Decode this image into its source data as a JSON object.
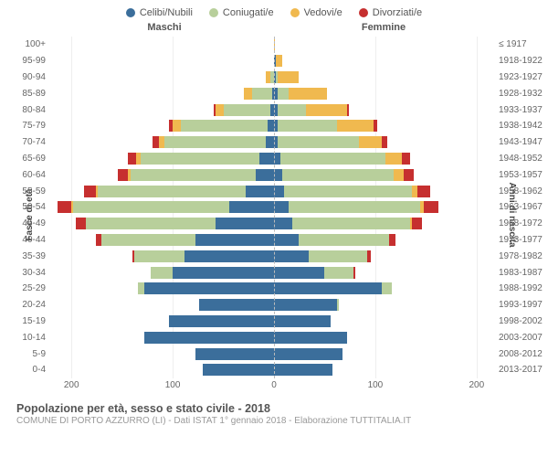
{
  "legend": [
    {
      "label": "Celibi/Nubili",
      "color": "#3b6e9b"
    },
    {
      "label": "Coniugati/e",
      "color": "#b8cf9b"
    },
    {
      "label": "Vedovi/e",
      "color": "#f0b94f"
    },
    {
      "label": "Divorziati/e",
      "color": "#c62f2f"
    }
  ],
  "headers": {
    "left": "Maschi",
    "right": "Femmine"
  },
  "axis_titles": {
    "left": "Fasce di età",
    "right": "Anni di nascita"
  },
  "title": "Popolazione per età, sesso e stato civile - 2018",
  "subtitle": "COMUNE DI PORTO AZZURRO (LI) - Dati ISTAT 1° gennaio 2018 - Elaborazione TUTTITALIA.IT",
  "x_max": 220,
  "x_ticks": [
    0,
    100,
    200
  ],
  "rows": [
    {
      "age": "100+",
      "year": "≤ 1917",
      "m": {
        "cn": 0,
        "co": 0,
        "ve": 0,
        "di": 0
      },
      "f": {
        "cn": 0,
        "co": 0,
        "ve": 1,
        "di": 0
      }
    },
    {
      "age": "95-99",
      "year": "1918-1922",
      "m": {
        "cn": 0,
        "co": 0,
        "ve": 0,
        "di": 0
      },
      "f": {
        "cn": 2,
        "co": 0,
        "ve": 6,
        "di": 0
      }
    },
    {
      "age": "90-94",
      "year": "1923-1927",
      "m": {
        "cn": 0,
        "co": 4,
        "ve": 4,
        "di": 0
      },
      "f": {
        "cn": 2,
        "co": 2,
        "ve": 20,
        "di": 0
      }
    },
    {
      "age": "85-89",
      "year": "1928-1932",
      "m": {
        "cn": 2,
        "co": 20,
        "ve": 8,
        "di": 0
      },
      "f": {
        "cn": 4,
        "co": 10,
        "ve": 38,
        "di": 0
      }
    },
    {
      "age": "80-84",
      "year": "1933-1937",
      "m": {
        "cn": 4,
        "co": 46,
        "ve": 8,
        "di": 2
      },
      "f": {
        "cn": 4,
        "co": 28,
        "ve": 40,
        "di": 2
      }
    },
    {
      "age": "75-79",
      "year": "1938-1942",
      "m": {
        "cn": 6,
        "co": 86,
        "ve": 8,
        "di": 4
      },
      "f": {
        "cn": 4,
        "co": 58,
        "ve": 36,
        "di": 4
      }
    },
    {
      "age": "70-74",
      "year": "1943-1947",
      "m": {
        "cn": 8,
        "co": 100,
        "ve": 6,
        "di": 6
      },
      "f": {
        "cn": 4,
        "co": 80,
        "ve": 22,
        "di": 6
      }
    },
    {
      "age": "65-69",
      "year": "1948-1952",
      "m": {
        "cn": 14,
        "co": 118,
        "ve": 4,
        "di": 8
      },
      "f": {
        "cn": 6,
        "co": 104,
        "ve": 16,
        "di": 8
      }
    },
    {
      "age": "60-64",
      "year": "1953-1957",
      "m": {
        "cn": 18,
        "co": 124,
        "ve": 2,
        "di": 10
      },
      "f": {
        "cn": 8,
        "co": 110,
        "ve": 10,
        "di": 10
      }
    },
    {
      "age": "55-59",
      "year": "1958-1962",
      "m": {
        "cn": 28,
        "co": 146,
        "ve": 2,
        "di": 12
      },
      "f": {
        "cn": 10,
        "co": 126,
        "ve": 6,
        "di": 12
      }
    },
    {
      "age": "50-54",
      "year": "1963-1967",
      "m": {
        "cn": 44,
        "co": 154,
        "ve": 2,
        "di": 14
      },
      "f": {
        "cn": 14,
        "co": 130,
        "ve": 4,
        "di": 14
      }
    },
    {
      "age": "45-49",
      "year": "1968-1972",
      "m": {
        "cn": 58,
        "co": 128,
        "ve": 0,
        "di": 10
      },
      "f": {
        "cn": 18,
        "co": 116,
        "ve": 2,
        "di": 10
      }
    },
    {
      "age": "40-44",
      "year": "1973-1977",
      "m": {
        "cn": 78,
        "co": 92,
        "ve": 0,
        "di": 6
      },
      "f": {
        "cn": 24,
        "co": 90,
        "ve": 0,
        "di": 6
      }
    },
    {
      "age": "35-39",
      "year": "1978-1982",
      "m": {
        "cn": 88,
        "co": 50,
        "ve": 0,
        "di": 2
      },
      "f": {
        "cn": 34,
        "co": 58,
        "ve": 0,
        "di": 4
      }
    },
    {
      "age": "30-34",
      "year": "1983-1987",
      "m": {
        "cn": 100,
        "co": 22,
        "ve": 0,
        "di": 0
      },
      "f": {
        "cn": 50,
        "co": 28,
        "ve": 0,
        "di": 2
      }
    },
    {
      "age": "25-29",
      "year": "1988-1992",
      "m": {
        "cn": 128,
        "co": 6,
        "ve": 0,
        "di": 0
      },
      "f": {
        "cn": 106,
        "co": 10,
        "ve": 0,
        "di": 0
      }
    },
    {
      "age": "20-24",
      "year": "1993-1997",
      "m": {
        "cn": 74,
        "co": 0,
        "ve": 0,
        "di": 0
      },
      "f": {
        "cn": 62,
        "co": 2,
        "ve": 0,
        "di": 0
      }
    },
    {
      "age": "15-19",
      "year": "1998-2002",
      "m": {
        "cn": 104,
        "co": 0,
        "ve": 0,
        "di": 0
      },
      "f": {
        "cn": 56,
        "co": 0,
        "ve": 0,
        "di": 0
      }
    },
    {
      "age": "10-14",
      "year": "2003-2007",
      "m": {
        "cn": 128,
        "co": 0,
        "ve": 0,
        "di": 0
      },
      "f": {
        "cn": 72,
        "co": 0,
        "ve": 0,
        "di": 0
      }
    },
    {
      "age": "5-9",
      "year": "2008-2012",
      "m": {
        "cn": 78,
        "co": 0,
        "ve": 0,
        "di": 0
      },
      "f": {
        "cn": 68,
        "co": 0,
        "ve": 0,
        "di": 0
      }
    },
    {
      "age": "0-4",
      "year": "2013-2017",
      "m": {
        "cn": 70,
        "co": 0,
        "ve": 0,
        "di": 0
      },
      "f": {
        "cn": 58,
        "co": 0,
        "ve": 0,
        "di": 0
      }
    }
  ]
}
